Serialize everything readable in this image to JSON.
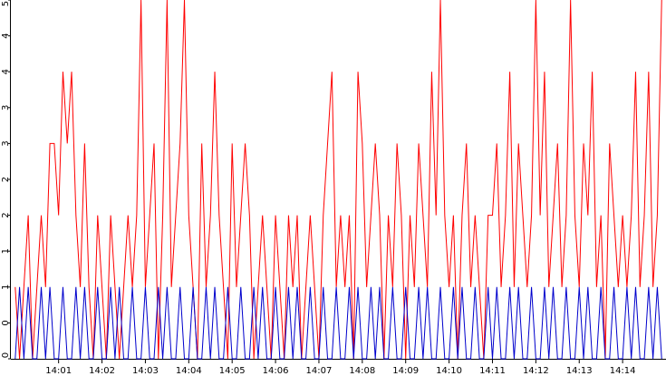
{
  "chart_data": {
    "type": "line",
    "xlim": [
      839.9,
      855.0
    ],
    "xticks": [
      {
        "value": 841,
        "label": "14:01"
      },
      {
        "value": 842,
        "label": "14:02"
      },
      {
        "value": 843,
        "label": "14:03"
      },
      {
        "value": 844,
        "label": "14:04"
      },
      {
        "value": 845,
        "label": "14:05"
      },
      {
        "value": 846,
        "label": "14:06"
      },
      {
        "value": 847,
        "label": "14:07"
      },
      {
        "value": 848,
        "label": "14:08"
      },
      {
        "value": 849,
        "label": "14:09"
      },
      {
        "value": 850,
        "label": "14:10"
      },
      {
        "value": 851,
        "label": "14:11"
      },
      {
        "value": 852,
        "label": "14:12"
      },
      {
        "value": 853,
        "label": "14:13"
      },
      {
        "value": 854,
        "label": "14:14"
      }
    ],
    "ylim": [
      0,
      5
    ],
    "yticks": [
      0,
      {
        "value": 0.5,
        "label": "0"
      },
      1,
      {
        "value": 1.5,
        "label": "1"
      },
      2,
      {
        "value": 2.5,
        "label": "2"
      },
      3,
      {
        "value": 3.5,
        "label": "3"
      },
      4,
      {
        "value": 4.5,
        "label": "4"
      },
      5
    ],
    "x": [
      840,
      840.1,
      840.2,
      840.3,
      840.4,
      840.5,
      840.6,
      840.7,
      840.8,
      840.9,
      841,
      841.1,
      841.2,
      841.3,
      841.4,
      841.5,
      841.6,
      841.7,
      841.8,
      841.9,
      842,
      842.1,
      842.2,
      842.3,
      842.4,
      842.5,
      842.6,
      842.7,
      842.8,
      842.9,
      843,
      843.1,
      843.2,
      843.3,
      843.4,
      843.5,
      843.6,
      843.7,
      843.8,
      843.9,
      844,
      844.1,
      844.2,
      844.3,
      844.4,
      844.5,
      844.6,
      844.7,
      844.8,
      844.9,
      845,
      845.1,
      845.2,
      845.3,
      845.4,
      845.5,
      845.6,
      845.7,
      845.8,
      845.9,
      846,
      846.1,
      846.2,
      846.3,
      846.4,
      846.5,
      846.6,
      846.7,
      846.8,
      846.9,
      847,
      847.1,
      847.2,
      847.3,
      847.4,
      847.5,
      847.6,
      847.7,
      847.8,
      847.9,
      848,
      848.1,
      848.2,
      848.3,
      848.4,
      848.5,
      848.6,
      848.7,
      848.8,
      848.9,
      849,
      849.1,
      849.2,
      849.3,
      849.4,
      849.5,
      849.6,
      849.7,
      849.8,
      849.9,
      850,
      850.1,
      850.2,
      850.3,
      850.4,
      850.5,
      850.6,
      850.7,
      850.8,
      850.9,
      851,
      851.1,
      851.2,
      851.3,
      851.4,
      851.5,
      851.6,
      851.7,
      851.8,
      851.9,
      852,
      852.1,
      852.2,
      852.3,
      852.4,
      852.5,
      852.6,
      852.7,
      852.8,
      852.9,
      853,
      853.1,
      853.2,
      853.3,
      853.4,
      853.5,
      853.6,
      853.7,
      853.8,
      853.9,
      854,
      854.1,
      854.2,
      854.3,
      854.4,
      854.5,
      854.6,
      854.7,
      854.8,
      854.9
    ],
    "series": [
      {
        "color": "#ff0000",
        "values": [
          1,
          0,
          1,
          2,
          0,
          1,
          2,
          1,
          3,
          3,
          2,
          4,
          3,
          4,
          2,
          1,
          3,
          1,
          0,
          2,
          1,
          0,
          2,
          1,
          0,
          1,
          2,
          1,
          2,
          5,
          1,
          2,
          3,
          0,
          2,
          5,
          1,
          2,
          3,
          5,
          2,
          1,
          0,
          3,
          1,
          2,
          4,
          2,
          1,
          0,
          3,
          1,
          2,
          3,
          2,
          0,
          1,
          2,
          1,
          0,
          2,
          1,
          0,
          2,
          1,
          2,
          0,
          1,
          2,
          1,
          0,
          2,
          3,
          4,
          1,
          2,
          1,
          2,
          0,
          4,
          3,
          1,
          2,
          3,
          2,
          0,
          2,
          1,
          3,
          2,
          0,
          2,
          1,
          3,
          2,
          1,
          4,
          2,
          5,
          2,
          1,
          2,
          0,
          2,
          3,
          1,
          2,
          1,
          0,
          2,
          2,
          3,
          1,
          2,
          4,
          1,
          3,
          2,
          1,
          2,
          5,
          2,
          4,
          1,
          2,
          3,
          1,
          2,
          5,
          2,
          1,
          3,
          2,
          4,
          1,
          2,
          0,
          3,
          2,
          1,
          2,
          1,
          2,
          4,
          1,
          2,
          4,
          1,
          2,
          5
        ]
      },
      {
        "color": "#0000cc",
        "values": [
          0,
          1,
          0,
          1,
          0,
          0,
          1,
          0,
          1,
          0,
          0,
          1,
          0,
          0,
          1,
          0,
          1,
          0,
          0,
          1,
          0,
          0,
          1,
          0,
          1,
          0,
          0,
          1,
          0,
          0,
          1,
          0,
          0,
          1,
          0,
          1,
          0,
          0,
          1,
          0,
          0,
          1,
          0,
          0,
          1,
          0,
          1,
          0,
          0,
          1,
          0,
          0,
          1,
          0,
          0,
          1,
          0,
          1,
          0,
          0,
          1,
          0,
          0,
          1,
          0,
          1,
          0,
          0,
          1,
          0,
          0,
          1,
          0,
          0,
          1,
          0,
          0,
          1,
          0,
          1,
          0,
          0,
          1,
          0,
          1,
          0,
          0,
          1,
          0,
          0,
          1,
          0,
          0,
          1,
          0,
          1,
          0,
          0,
          1,
          0,
          0,
          1,
          0,
          1,
          0,
          0,
          1,
          0,
          0,
          1,
          0,
          1,
          0,
          0,
          1,
          0,
          1,
          0,
          0,
          1,
          0,
          0,
          1,
          0,
          1,
          0,
          0,
          1,
          0,
          0,
          1,
          0,
          1,
          0,
          0,
          1,
          0,
          0,
          1,
          0,
          0,
          1,
          0,
          1,
          0,
          0,
          1,
          0,
          1,
          0
        ]
      }
    ]
  }
}
